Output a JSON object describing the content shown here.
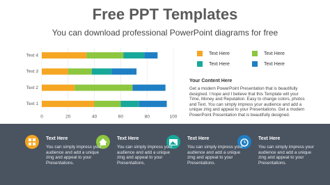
{
  "header": {
    "title": "Free PPT Templates",
    "subtitle": "You can download professional PowerPoint diagrams for free"
  },
  "chart_data": {
    "type": "stacked-bar-horizontal",
    "categories": [
      "Text 1",
      "Text 2",
      "Text 3",
      "Text 4"
    ],
    "series": [
      {
        "name": "Text Here",
        "color": "#f5a623",
        "values": [
          40,
          25,
          20,
          34
        ]
      },
      {
        "name": "Text Here",
        "color": "#8dc63f",
        "values": [
          20,
          44,
          18,
          28
        ]
      },
      {
        "name": "Text Here",
        "color": "#17a89a",
        "values": [
          14,
          0,
          15,
          16
        ]
      },
      {
        "name": "Text Here",
        "color": "#1f7fc4",
        "values": [
          21,
          25,
          19,
          10
        ]
      }
    ],
    "xlim": [
      0,
      100
    ],
    "xticks": [
      0,
      20,
      40,
      60,
      80,
      100
    ],
    "grid": true
  },
  "content": {
    "title": "Your Content Here",
    "body": "Get a modern PowerPoint  Presentation that is beautifully designed. I hope and I believe that this Template will your Time, Money and Reputation. Easy to change colors, photos and Text. You can simply impress your audience and add a unique zing and appeal to your Presentations.  Get a modern PowerPoint  Presentation that is beautifully designed."
  },
  "features": [
    {
      "title": "Text Here",
      "body": "You can simply impress your audience and add a unique zing and appeal to your Presentations."
    },
    {
      "title": "Text Here",
      "body": "You can simply impress your audience and add a unique zing and appeal to your Presentations."
    },
    {
      "title": "Text Here",
      "body": "You can simply impress your audience and add a unique zing and appeal to your Presentations."
    },
    {
      "title": "Text Here",
      "body": "You can simply impress your audience and add a unique zing and appeal to your Presentations."
    }
  ]
}
